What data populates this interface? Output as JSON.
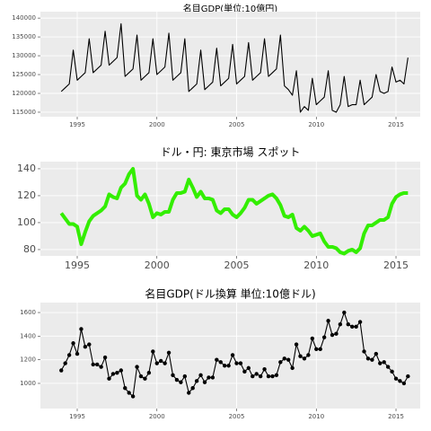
{
  "chart_data": [
    {
      "type": "line",
      "title": "名目GDP(単位:10億円)",
      "color": "#000000",
      "grid": true,
      "markers": false,
      "x": [
        1994,
        1994.25,
        1994.5,
        1994.75,
        1995,
        1995.25,
        1995.5,
        1995.75,
        1996,
        1996.25,
        1996.5,
        1996.75,
        1997,
        1997.25,
        1997.5,
        1997.75,
        1998,
        1998.25,
        1998.5,
        1998.75,
        1999,
        1999.25,
        1999.5,
        1999.75,
        2000,
        2000.25,
        2000.5,
        2000.75,
        2001,
        2001.25,
        2001.5,
        2001.75,
        2002,
        2002.25,
        2002.5,
        2002.75,
        2003,
        2003.25,
        2003.5,
        2003.75,
        2004,
        2004.25,
        2004.5,
        2004.75,
        2005,
        2005.25,
        2005.5,
        2005.75,
        2006,
        2006.25,
        2006.5,
        2006.75,
        2007,
        2007.25,
        2007.5,
        2007.75,
        2008,
        2008.25,
        2008.5,
        2008.75,
        2009,
        2009.25,
        2009.5,
        2009.75,
        2010,
        2010.25,
        2010.5,
        2010.75,
        2011,
        2011.25,
        2011.5,
        2011.75,
        2012,
        2012.25,
        2012.5,
        2012.75,
        2013,
        2013.25,
        2013.5,
        2013.75,
        2014,
        2014.25,
        2014.5,
        2014.75,
        2015,
        2015.25,
        2015.5,
        2015.75
      ],
      "values": [
        120500,
        121500,
        122500,
        131500,
        123500,
        124500,
        125500,
        134500,
        125500,
        126500,
        127500,
        136500,
        127500,
        128500,
        129500,
        138500,
        124500,
        125500,
        126500,
        135500,
        123500,
        124500,
        125500,
        134500,
        125000,
        126000,
        127000,
        136000,
        123500,
        124500,
        125500,
        134500,
        120500,
        121500,
        122500,
        131500,
        121000,
        122000,
        123000,
        132000,
        122000,
        123000,
        124000,
        133000,
        122500,
        123500,
        124500,
        133500,
        123500,
        124500,
        125500,
        134500,
        124500,
        125500,
        126500,
        135500,
        122000,
        121000,
        119500,
        126000,
        115000,
        116500,
        115500,
        124000,
        117000,
        118000,
        119000,
        126000,
        115500,
        115000,
        117000,
        124500,
        116500,
        117000,
        117000,
        123500,
        117000,
        118000,
        119000,
        125000,
        120500,
        120000,
        120500,
        127000,
        123000,
        123500,
        122500,
        129500
      ],
      "xlim": [
        1992.69,
        2016.52
      ],
      "xticks": [
        1995,
        2000,
        2005,
        2010,
        2015
      ],
      "ylim": [
        113800,
        141700
      ],
      "yticks": [
        115000,
        120000,
        125000,
        130000,
        135000,
        140000
      ]
    },
    {
      "type": "line",
      "title": "ドル・円: 東京市場 スポット",
      "color": "#33ee00",
      "grid": true,
      "markers": false,
      "x": [
        1994,
        1994.25,
        1994.5,
        1994.75,
        1995,
        1995.25,
        1995.5,
        1995.75,
        1996,
        1996.25,
        1996.5,
        1996.75,
        1997,
        1997.25,
        1997.5,
        1997.75,
        1998,
        1998.25,
        1998.5,
        1998.75,
        1999,
        1999.25,
        1999.5,
        1999.75,
        2000,
        2000.25,
        2000.5,
        2000.75,
        2001,
        2001.25,
        2001.5,
        2001.75,
        2002,
        2002.25,
        2002.5,
        2002.75,
        2003,
        2003.25,
        2003.5,
        2003.75,
        2004,
        2004.25,
        2004.5,
        2004.75,
        2005,
        2005.25,
        2005.5,
        2005.75,
        2006,
        2006.25,
        2006.5,
        2006.75,
        2007,
        2007.25,
        2007.5,
        2007.75,
        2008,
        2008.25,
        2008.5,
        2008.75,
        2009,
        2009.25,
        2009.5,
        2009.75,
        2010,
        2010.25,
        2010.5,
        2010.75,
        2011,
        2011.25,
        2011.5,
        2011.75,
        2012,
        2012.25,
        2012.5,
        2012.75,
        2013,
        2013.25,
        2013.5,
        2013.75,
        2014,
        2014.25,
        2014.5,
        2014.75,
        2015,
        2015.25,
        2015.5,
        2015.75
      ],
      "values": [
        107,
        103,
        99,
        99,
        97,
        84,
        93,
        101,
        105,
        107,
        109,
        112,
        121,
        119,
        118,
        126,
        129,
        136,
        140,
        120,
        117,
        121,
        114,
        104,
        107,
        106,
        108,
        108,
        117,
        122,
        122,
        123,
        132,
        126,
        119,
        123,
        118,
        118,
        117,
        109,
        107,
        110,
        110,
        106,
        104,
        107,
        111,
        117,
        117,
        114,
        116,
        118,
        120,
        121,
        118,
        113,
        105,
        104,
        106,
        96,
        94,
        97,
        94,
        90,
        91,
        92,
        86,
        82,
        82,
        81,
        78,
        77,
        79,
        80,
        78,
        81,
        92,
        98,
        98,
        100,
        102,
        102,
        104,
        114,
        119,
        121,
        122,
        122
      ],
      "xlim": [
        1992.69,
        2016.52
      ],
      "xticks": [
        1995,
        2000,
        2005,
        2010,
        2015
      ],
      "ylim": [
        75.3,
        145.3
      ],
      "yticks": [
        80,
        100,
        120,
        140
      ]
    },
    {
      "type": "line",
      "title": "名目GDP(ドル換算 単位:10億ドル)",
      "color": "#000000",
      "grid": true,
      "markers": true,
      "x": [
        1994,
        1994.25,
        1994.5,
        1994.75,
        1995,
        1995.25,
        1995.5,
        1995.75,
        1996,
        1996.25,
        1996.5,
        1996.75,
        1997,
        1997.25,
        1997.5,
        1997.75,
        1998,
        1998.25,
        1998.5,
        1998.75,
        1999,
        1999.25,
        1999.5,
        1999.75,
        2000,
        2000.25,
        2000.5,
        2000.75,
        2001,
        2001.25,
        2001.5,
        2001.75,
        2002,
        2002.25,
        2002.5,
        2002.75,
        2003,
        2003.25,
        2003.5,
        2003.75,
        2004,
        2004.25,
        2004.5,
        2004.75,
        2005,
        2005.25,
        2005.5,
        2005.75,
        2006,
        2006.25,
        2006.5,
        2006.75,
        2007,
        2007.25,
        2007.5,
        2007.75,
        2008,
        2008.25,
        2008.5,
        2008.75,
        2009,
        2009.25,
        2009.5,
        2009.75,
        2010,
        2010.25,
        2010.5,
        2010.75,
        2011,
        2011.25,
        2011.5,
        2011.75,
        2012,
        2012.25,
        2012.5,
        2012.75,
        2013,
        2013.25,
        2013.5,
        2013.75,
        2014,
        2014.25,
        2014.5,
        2014.75,
        2015,
        2015.25,
        2015.5,
        2015.75
      ],
      "values": [
        1110,
        1170,
        1240,
        1340,
        1250,
        1460,
        1310,
        1330,
        1160,
        1160,
        1140,
        1220,
        1040,
        1080,
        1090,
        1110,
        960,
        920,
        890,
        1140,
        1060,
        1040,
        1090,
        1270,
        1170,
        1190,
        1170,
        1260,
        1070,
        1030,
        1010,
        1060,
        920,
        960,
        1020,
        1070,
        1010,
        1050,
        1050,
        1200,
        1180,
        1150,
        1150,
        1240,
        1170,
        1170,
        1100,
        1130,
        1060,
        1080,
        1060,
        1120,
        1060,
        1060,
        1070,
        1180,
        1210,
        1200,
        1130,
        1330,
        1230,
        1210,
        1240,
        1380,
        1290,
        1290,
        1390,
        1530,
        1410,
        1420,
        1500,
        1600,
        1500,
        1480,
        1480,
        1520,
        1270,
        1210,
        1200,
        1250,
        1170,
        1180,
        1140,
        1100,
        1040,
        1020,
        1000,
        1060
      ],
      "xlim": [
        1992.69,
        2016.52
      ],
      "xticks": [
        1995,
        2000,
        2005,
        2010,
        2015
      ],
      "ylim": [
        787,
        1684
      ],
      "yticks": [
        1000,
        1200,
        1400,
        1600
      ]
    }
  ]
}
